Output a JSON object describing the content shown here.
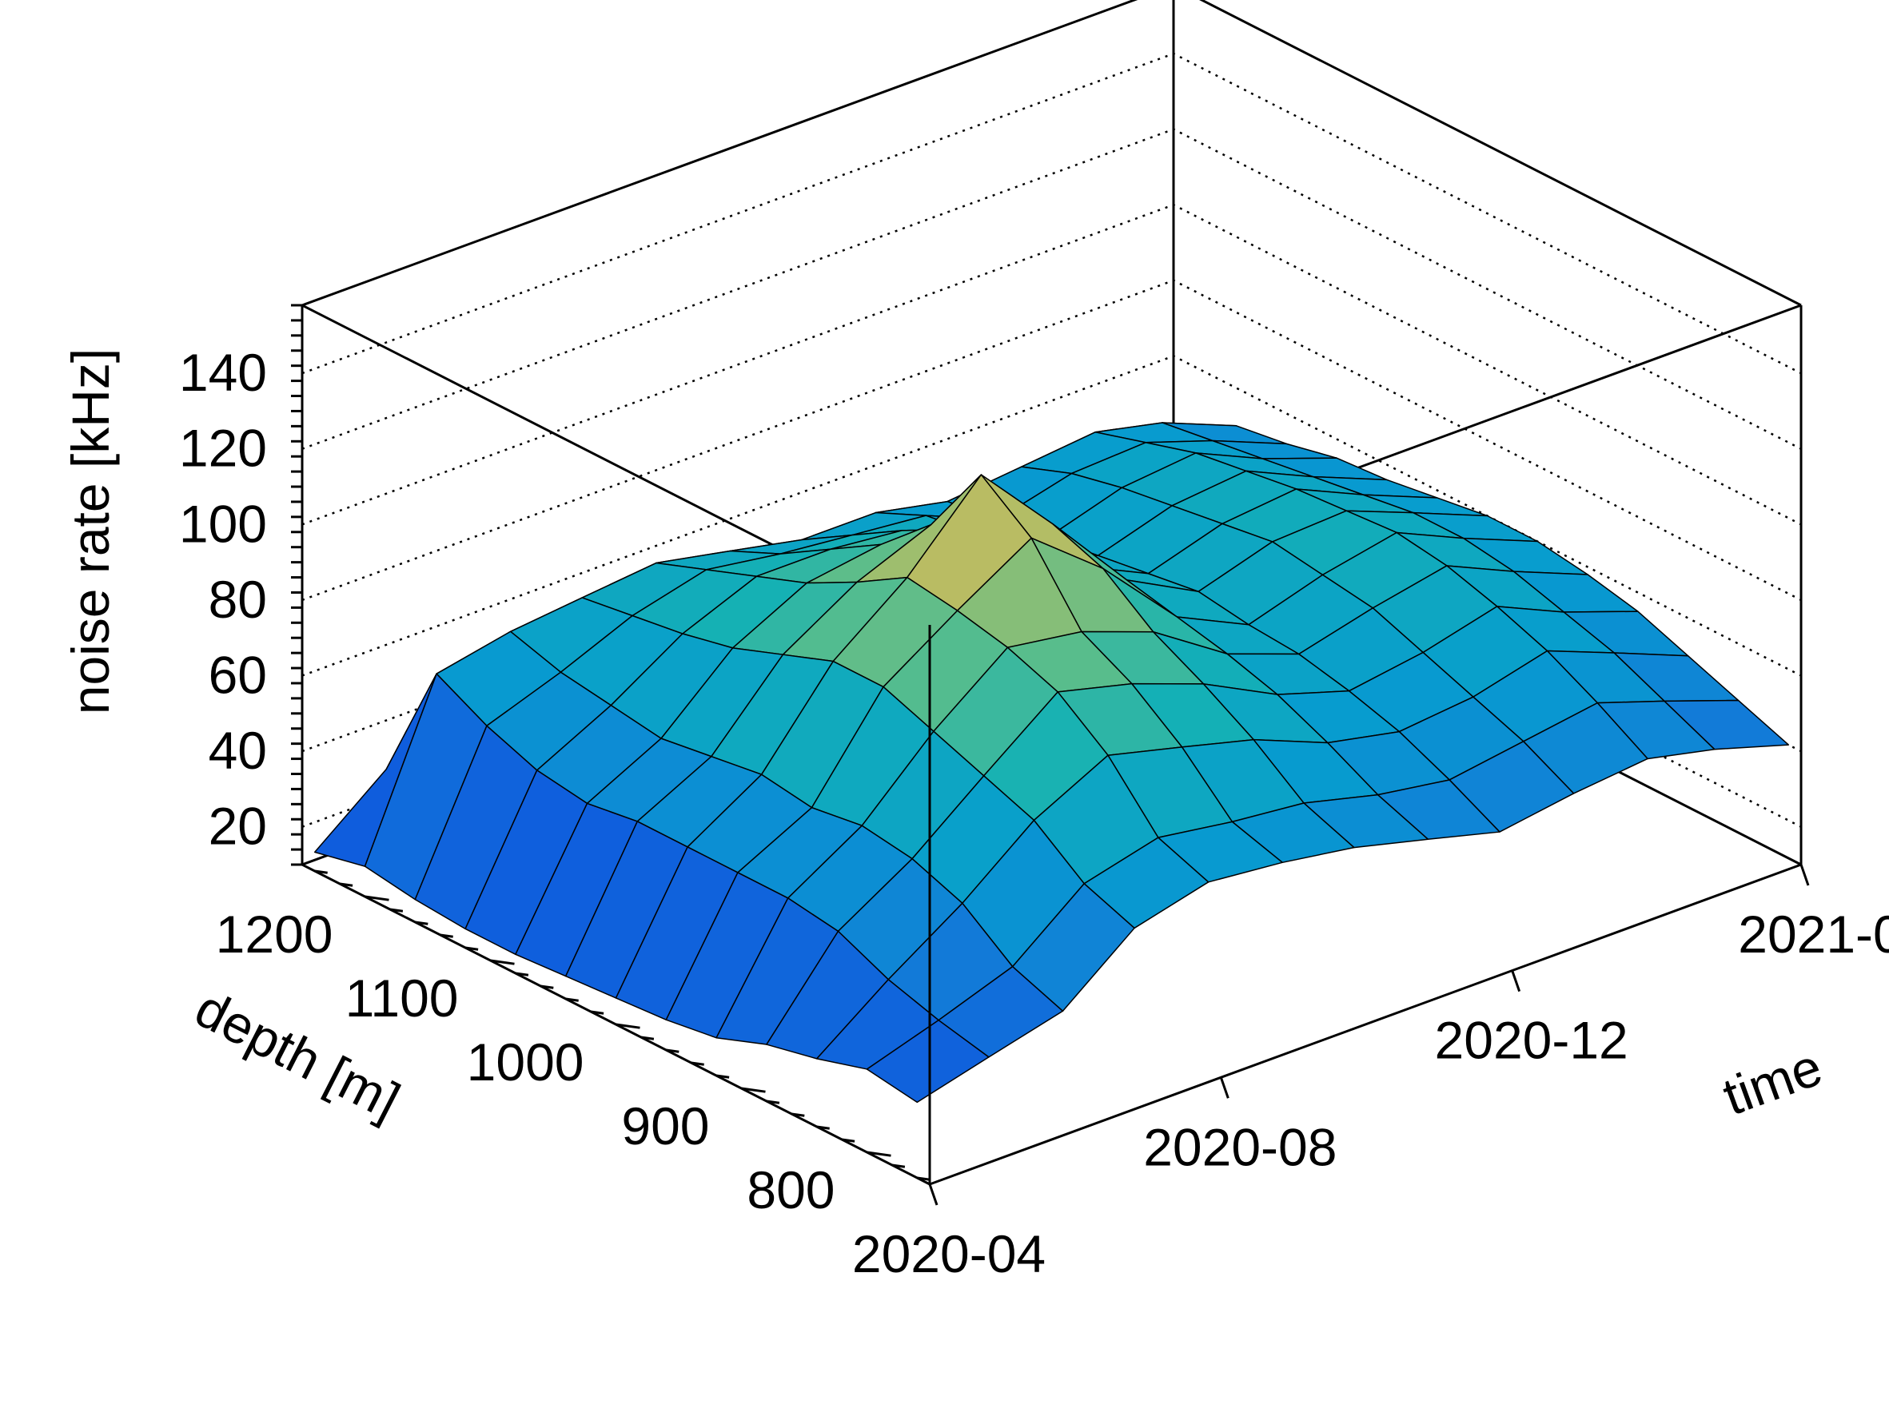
{
  "chart_data": {
    "type": "surface3d",
    "axes": {
      "x": {
        "label": "time",
        "ticks": [
          "2020-04",
          "2020-08",
          "2020-12",
          "2021-0"
        ],
        "range": [
          "2020-04",
          "2021-04"
        ]
      },
      "y": {
        "label": "depth [m]",
        "ticks": [
          800,
          900,
          1000,
          1100,
          1200
        ],
        "range": [
          750,
          1250
        ]
      },
      "z": {
        "label": "noise rate [kHz]",
        "ticks": [
          20,
          40,
          60,
          80,
          100,
          120,
          140
        ],
        "range": [
          10,
          158
        ]
      }
    },
    "grid": {
      "z_gridlines": true,
      "style": "dotted"
    },
    "colormap": "parula",
    "time_samples": [
      "2020-04",
      "2020-05",
      "2020-06",
      "2020-07",
      "2020-08",
      "2020-09",
      "2020-10",
      "2020-11",
      "2020-12",
      "2021-01",
      "2021-02",
      "2021-03",
      "2021-04"
    ],
    "depth_samples": [
      760,
      800,
      840,
      880,
      920,
      960,
      1000,
      1040,
      1080,
      1120,
      1160,
      1200,
      1240
    ],
    "z_values": [
      [
        30,
        32,
        28,
        25,
        20,
        18,
        17,
        16,
        15,
        15,
        16,
        18,
        15
      ],
      [
        35,
        38,
        42,
        48,
        50,
        50,
        50,
        50,
        48,
        50,
        55,
        62,
        30
      ],
      [
        40,
        45,
        55,
        60,
        62,
        60,
        62,
        60,
        58,
        60,
        62,
        66,
        40
      ],
      [
        55,
        60,
        70,
        75,
        80,
        85,
        85,
        80,
        75,
        72,
        70,
        68,
        45
      ],
      [
        60,
        65,
        80,
        90,
        95,
        98,
        100,
        92,
        85,
        80,
        75,
        70,
        50
      ],
      [
        58,
        62,
        75,
        85,
        92,
        110,
        120,
        100,
        88,
        80,
        72,
        66,
        50
      ],
      [
        55,
        60,
        70,
        78,
        85,
        95,
        100,
        92,
        85,
        78,
        70,
        62,
        48
      ],
      [
        50,
        55,
        62,
        68,
        72,
        75,
        78,
        75,
        72,
        70,
        68,
        62,
        45
      ],
      [
        45,
        52,
        58,
        62,
        65,
        66,
        68,
        66,
        64,
        62,
        60,
        58,
        45
      ],
      [
        48,
        55,
        60,
        65,
        70,
        72,
        74,
        72,
        70,
        68,
        65,
        60,
        45
      ],
      [
        50,
        58,
        65,
        70,
        74,
        76,
        75,
        74,
        72,
        70,
        66,
        62,
        45
      ],
      [
        46,
        52,
        58,
        62,
        66,
        68,
        68,
        66,
        64,
        62,
        60,
        58,
        42
      ],
      [
        40,
        45,
        50,
        55,
        58,
        60,
        60,
        58,
        56,
        55,
        52,
        50,
        40
      ]
    ]
  }
}
